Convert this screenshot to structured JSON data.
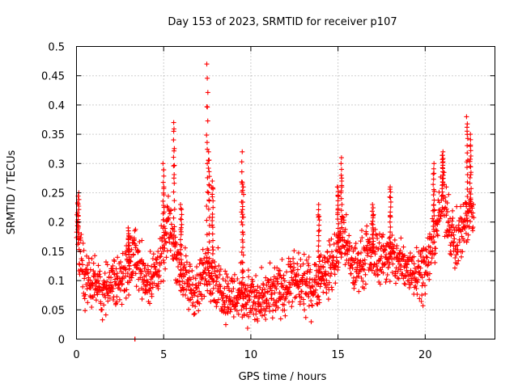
{
  "chart_data": {
    "type": "scatter",
    "title": "Day 153 of 2023, SRMTID for receiver p107",
    "xlabel": "GPS time / hours",
    "ylabel": "SRMTID / TECUs",
    "xlim": [
      0,
      24
    ],
    "ylim": [
      0,
      0.5
    ],
    "x_ticks": [
      0,
      5,
      10,
      15,
      20
    ],
    "x_tick_labels": [
      "0",
      "5",
      "10",
      "15",
      "20"
    ],
    "y_ticks": [
      0,
      0.05,
      0.1,
      0.15,
      0.2,
      0.25,
      0.3,
      0.35,
      0.4,
      0.45,
      0.5
    ],
    "y_tick_labels": [
      "0",
      "0.05",
      "0.1",
      "0.15",
      "0.2",
      "0.25",
      "0.3",
      "0.35",
      "0.4",
      "0.45",
      "0.5"
    ],
    "grid": true,
    "marker": "+",
    "color": "#ff0000",
    "series": [
      {
        "name": "SRMTID",
        "profile": {
          "x": [
            0,
            0.2,
            0.5,
            1,
            1.5,
            2,
            2.5,
            3,
            3.3,
            3.6,
            4,
            4.5,
            5,
            5.3,
            5.7,
            6,
            6.5,
            7,
            7.5,
            8,
            8.5,
            9,
            9.5,
            10,
            10.5,
            11,
            11.5,
            12,
            12.5,
            13,
            13.5,
            14,
            14.5,
            15,
            15.3,
            15.7,
            16,
            16.5,
            17,
            17.5,
            18,
            18.5,
            19,
            19.5,
            20,
            20.3,
            20.7,
            21,
            21.3,
            21.7,
            22,
            22.3,
            22.6,
            22.8
          ],
          "y": [
            0.2,
            0.14,
            0.11,
            0.09,
            0.08,
            0.1,
            0.11,
            0.12,
            0.15,
            0.13,
            0.1,
            0.11,
            0.15,
            0.2,
            0.15,
            0.11,
            0.09,
            0.08,
            0.13,
            0.1,
            0.08,
            0.07,
            0.08,
            0.07,
            0.06,
            0.07,
            0.08,
            0.09,
            0.1,
            0.09,
            0.09,
            0.11,
            0.12,
            0.15,
            0.18,
            0.13,
            0.12,
            0.14,
            0.15,
            0.14,
            0.14,
            0.13,
            0.12,
            0.12,
            0.12,
            0.15,
            0.2,
            0.24,
            0.21,
            0.16,
            0.18,
            0.2,
            0.22,
            0.22
          ]
        },
        "spikes": [
          {
            "x": 0.1,
            "y": 0.25
          },
          {
            "x": 3.0,
            "y": 0.19
          },
          {
            "x": 3.35,
            "y": 0.0
          },
          {
            "x": 5.0,
            "y": 0.3
          },
          {
            "x": 5.6,
            "y": 0.37
          },
          {
            "x": 6.0,
            "y": 0.23
          },
          {
            "x": 7.5,
            "y": 0.47
          },
          {
            "x": 7.6,
            "y": 0.32
          },
          {
            "x": 7.8,
            "y": 0.27
          },
          {
            "x": 9.5,
            "y": 0.32
          },
          {
            "x": 9.55,
            "y": 0.26
          },
          {
            "x": 13.9,
            "y": 0.23
          },
          {
            "x": 15.2,
            "y": 0.31
          },
          {
            "x": 15.0,
            "y": 0.26
          },
          {
            "x": 17.0,
            "y": 0.23
          },
          {
            "x": 18.0,
            "y": 0.26
          },
          {
            "x": 20.5,
            "y": 0.3
          },
          {
            "x": 21.0,
            "y": 0.32
          },
          {
            "x": 22.4,
            "y": 0.38
          },
          {
            "x": 22.6,
            "y": 0.35
          }
        ]
      }
    ]
  }
}
